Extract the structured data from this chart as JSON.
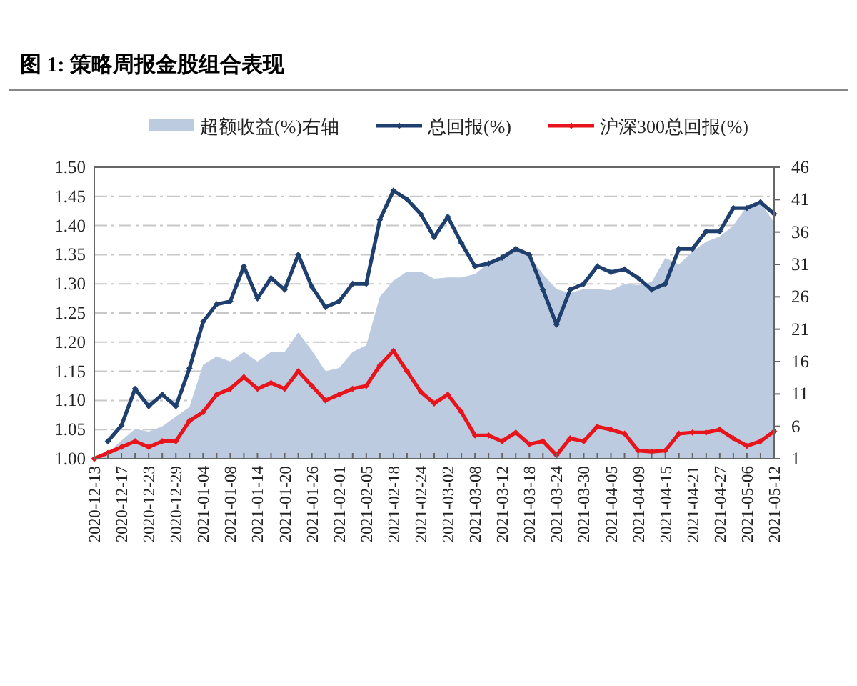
{
  "chart_data": {
    "type": "line",
    "title": "图 1: 策略周报金股组合表现",
    "categories": [
      "2020-12-13",
      null,
      "2020-12-17",
      null,
      "2020-12-23",
      null,
      "2020-12-29",
      null,
      "2021-01-04",
      null,
      "2021-01-08",
      null,
      "2021-01-14",
      null,
      "2021-01-20",
      null,
      "2021-01-26",
      null,
      "2021-02-01",
      null,
      "2021-02-05",
      null,
      "2021-02-18",
      null,
      "2021-02-24",
      null,
      "2021-03-02",
      null,
      "2021-03-08",
      null,
      "2021-03-12",
      null,
      "2021-03-18",
      null,
      "2021-03-24",
      null,
      "2021-03-30",
      null,
      "2021-04-05",
      null,
      "2021-04-09",
      null,
      "2021-04-15",
      null,
      "2021-04-21",
      null,
      "2021-04-27",
      null,
      "2021-05-06",
      null,
      "2021-05-12"
    ],
    "series": [
      {
        "name": "超额收益(%)右轴",
        "type": "area",
        "axis": "y2",
        "color": "#bccbe0",
        "values": [
          1,
          1.9,
          3.8,
          5.6,
          5.2,
          6,
          7.5,
          9,
          15.5,
          16.8,
          16,
          17.5,
          16,
          17.5,
          17.5,
          20.5,
          17.7,
          14.5,
          15,
          17.5,
          18.5,
          26,
          28.5,
          29.9,
          29.9,
          28.8,
          29,
          29,
          29.5,
          31.2,
          32.5,
          33.6,
          32.3,
          29.5,
          27.2,
          26.6,
          27.2,
          27.2,
          27,
          28,
          27.8,
          28.3,
          32,
          31,
          33,
          34.5,
          35.3,
          37,
          40,
          40.5,
          37.5
        ]
      },
      {
        "name": "总回报(%)",
        "marker": "diamond",
        "color": "#1f3f6e",
        "values": [
          null,
          1.03,
          1.057,
          1.12,
          1.09,
          1.11,
          1.09,
          1.155,
          1.235,
          1.265,
          1.27,
          1.33,
          1.275,
          1.31,
          1.29,
          1.35,
          1.295,
          1.26,
          1.27,
          1.3,
          1.3,
          1.41,
          1.46,
          1.445,
          1.42,
          1.38,
          1.415,
          1.37,
          1.33,
          1.335,
          1.345,
          1.36,
          1.35,
          1.29,
          1.23,
          1.29,
          1.3,
          1.33,
          1.32,
          1.325,
          1.31,
          1.29,
          1.3,
          1.36,
          1.36,
          1.39,
          1.39,
          1.43,
          1.43,
          1.44,
          1.42
        ]
      },
      {
        "name": "沪深300总回报(%)",
        "marker": "diamond",
        "color": "#e8141c",
        "values": [
          1.0,
          1.01,
          1.02,
          1.03,
          1.02,
          1.03,
          1.03,
          1.065,
          1.08,
          1.11,
          1.12,
          1.14,
          1.12,
          1.13,
          1.12,
          1.15,
          1.125,
          1.1,
          1.11,
          1.12,
          1.125,
          1.16,
          1.185,
          1.15,
          1.115,
          1.095,
          1.11,
          1.08,
          1.04,
          1.04,
          1.03,
          1.045,
          1.025,
          1.03,
          1.006,
          1.035,
          1.03,
          1.055,
          1.05,
          1.043,
          1.014,
          1.012,
          1.014,
          1.043,
          1.045,
          1.045,
          1.05,
          1.035,
          1.022,
          1.03,
          1.047
        ]
      }
    ],
    "ylim": [
      1.0,
      1.5
    ],
    "yticks": [
      {
        "value": 1.0,
        "label": "1.00"
      },
      {
        "value": 1.05,
        "label": "1.05"
      },
      {
        "value": 1.1,
        "label": "1.10"
      },
      {
        "value": 1.15,
        "label": "1.15"
      },
      {
        "value": 1.2,
        "label": "1.20"
      },
      {
        "value": 1.25,
        "label": "1.25"
      },
      {
        "value": 1.3,
        "label": "1.30"
      },
      {
        "value": 1.35,
        "label": "1.35"
      },
      {
        "value": 1.4,
        "label": "1.40"
      },
      {
        "value": 1.45,
        "label": "1.45"
      },
      {
        "value": 1.5,
        "label": "1.50"
      }
    ],
    "y2lim": [
      1,
      46
    ],
    "y2ticks": [
      1,
      6,
      11,
      16,
      21,
      26,
      31,
      36,
      41,
      46
    ],
    "grid": "y",
    "legend": "top",
    "line_style": "solid"
  }
}
